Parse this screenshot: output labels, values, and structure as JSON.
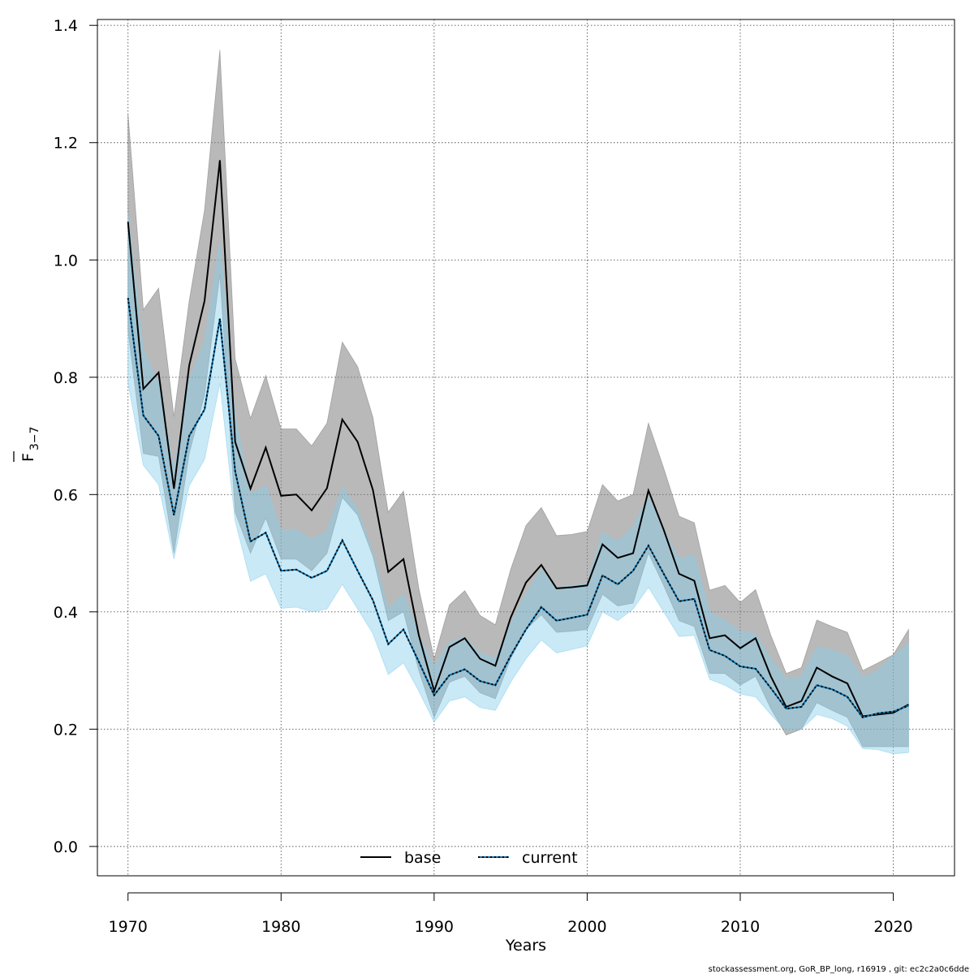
{
  "chart_data": {
    "type": "line",
    "title": "",
    "xlabel": "Years",
    "ylabel_main": "F",
    "ylabel_sub": "3−7",
    "xlim": [
      1968,
      2024
    ],
    "ylim": [
      -0.05,
      1.41
    ],
    "x_ticks": [
      1970,
      1980,
      1990,
      2000,
      2010,
      2020
    ],
    "y_ticks": [
      0.0,
      0.2,
      0.4,
      0.6,
      0.8,
      1.0,
      1.2,
      1.4
    ],
    "x_tick_labels": [
      "1970",
      "1980",
      "1990",
      "2000",
      "2010",
      "2020"
    ],
    "y_tick_labels": [
      "0.0",
      "0.2",
      "0.4",
      "0.6",
      "0.8",
      "1.0",
      "1.2",
      "1.4"
    ],
    "grid": true,
    "legend_position": "bottom-center",
    "x": [
      1970,
      1971,
      1972,
      1973,
      1974,
      1975,
      1976,
      1977,
      1978,
      1979,
      1980,
      1981,
      1982,
      1983,
      1984,
      1985,
      1986,
      1987,
      1988,
      1989,
      1990,
      1991,
      1992,
      1993,
      1994,
      1995,
      1996,
      1997,
      1998,
      1999,
      2000,
      2001,
      2002,
      2003,
      2004,
      2005,
      2006,
      2007,
      2008,
      2009,
      2010,
      2011,
      2012,
      2013,
      2014,
      2015,
      2016,
      2017,
      2018,
      2019,
      2020,
      2021
    ],
    "series": [
      {
        "name": "base",
        "color": "#000000",
        "band_color": "#808080",
        "values": [
          1.065,
          0.78,
          0.808,
          0.61,
          0.82,
          0.93,
          1.17,
          0.69,
          0.61,
          0.68,
          0.598,
          0.6,
          0.573,
          0.611,
          0.728,
          0.69,
          0.608,
          0.468,
          0.49,
          0.36,
          0.265,
          0.34,
          0.355,
          0.32,
          0.308,
          0.39,
          0.45,
          0.48,
          0.44,
          0.442,
          0.445,
          0.515,
          0.492,
          0.5,
          0.607,
          0.54,
          0.465,
          0.453,
          0.355,
          0.36,
          0.338,
          0.355,
          0.29,
          0.238,
          0.248,
          0.305,
          0.29,
          0.278,
          0.222,
          0.225,
          0.228,
          0.242
        ],
        "lower": [
          0.88,
          0.67,
          0.665,
          0.5,
          0.67,
          0.77,
          0.975,
          0.57,
          0.5,
          0.56,
          0.49,
          0.49,
          0.47,
          0.5,
          0.595,
          0.565,
          0.495,
          0.385,
          0.4,
          0.3,
          0.22,
          0.28,
          0.29,
          0.262,
          0.252,
          0.32,
          0.37,
          0.395,
          0.365,
          0.367,
          0.37,
          0.43,
          0.41,
          0.415,
          0.5,
          0.445,
          0.385,
          0.375,
          0.295,
          0.295,
          0.275,
          0.29,
          0.235,
          0.19,
          0.2,
          0.245,
          0.232,
          0.22,
          0.17,
          0.17,
          0.17,
          0.17
        ],
        "upper": [
          1.25,
          0.915,
          0.952,
          0.733,
          0.93,
          1.085,
          1.358,
          0.832,
          0.73,
          0.803,
          0.712,
          0.712,
          0.683,
          0.722,
          0.86,
          0.818,
          0.732,
          0.57,
          0.606,
          0.44,
          0.32,
          0.412,
          0.436,
          0.394,
          0.378,
          0.472,
          0.547,
          0.578,
          0.53,
          0.532,
          0.537,
          0.617,
          0.589,
          0.6,
          0.722,
          0.645,
          0.563,
          0.552,
          0.437,
          0.445,
          0.416,
          0.438,
          0.36,
          0.295,
          0.305,
          0.386,
          0.375,
          0.365,
          0.3,
          0.313,
          0.327,
          0.37
        ]
      },
      {
        "name": "current",
        "color": "#0b6fa8",
        "band_color": "#87ceeb",
        "values": [
          0.935,
          0.735,
          0.7,
          0.565,
          0.7,
          0.745,
          0.9,
          0.64,
          0.52,
          0.535,
          0.47,
          0.472,
          0.458,
          0.47,
          0.522,
          0.47,
          0.42,
          0.345,
          0.37,
          0.315,
          0.258,
          0.292,
          0.302,
          0.282,
          0.275,
          0.325,
          0.37,
          0.408,
          0.385,
          0.39,
          0.395,
          0.462,
          0.447,
          0.47,
          0.513,
          0.465,
          0.418,
          0.422,
          0.335,
          0.325,
          0.307,
          0.303,
          0.27,
          0.235,
          0.238,
          0.275,
          0.268,
          0.255,
          0.22,
          0.227,
          0.23,
          0.24
        ],
        "lower": [
          0.79,
          0.65,
          0.617,
          0.49,
          0.615,
          0.66,
          0.79,
          0.555,
          0.452,
          0.465,
          0.406,
          0.408,
          0.4,
          0.405,
          0.447,
          0.405,
          0.363,
          0.293,
          0.313,
          0.265,
          0.212,
          0.248,
          0.255,
          0.237,
          0.232,
          0.28,
          0.32,
          0.352,
          0.33,
          0.336,
          0.342,
          0.4,
          0.385,
          0.405,
          0.442,
          0.4,
          0.358,
          0.36,
          0.285,
          0.275,
          0.26,
          0.255,
          0.225,
          0.197,
          0.2,
          0.225,
          0.218,
          0.205,
          0.167,
          0.165,
          0.158,
          0.16
        ],
        "upper": [
          1.078,
          0.847,
          0.79,
          0.642,
          0.795,
          0.86,
          1.03,
          0.735,
          0.6,
          0.615,
          0.54,
          0.54,
          0.523,
          0.537,
          0.612,
          0.575,
          0.5,
          0.405,
          0.43,
          0.36,
          0.307,
          0.348,
          0.357,
          0.33,
          0.32,
          0.38,
          0.43,
          0.472,
          0.44,
          0.445,
          0.448,
          0.535,
          0.52,
          0.545,
          0.597,
          0.54,
          0.49,
          0.497,
          0.4,
          0.385,
          0.367,
          0.363,
          0.32,
          0.285,
          0.29,
          0.34,
          0.335,
          0.325,
          0.288,
          0.3,
          0.325,
          0.345
        ]
      }
    ]
  },
  "footer": {
    "text": "stockassessment.org, GoR_BP_long, r16919 , git: ec2c2a0c6dde"
  }
}
